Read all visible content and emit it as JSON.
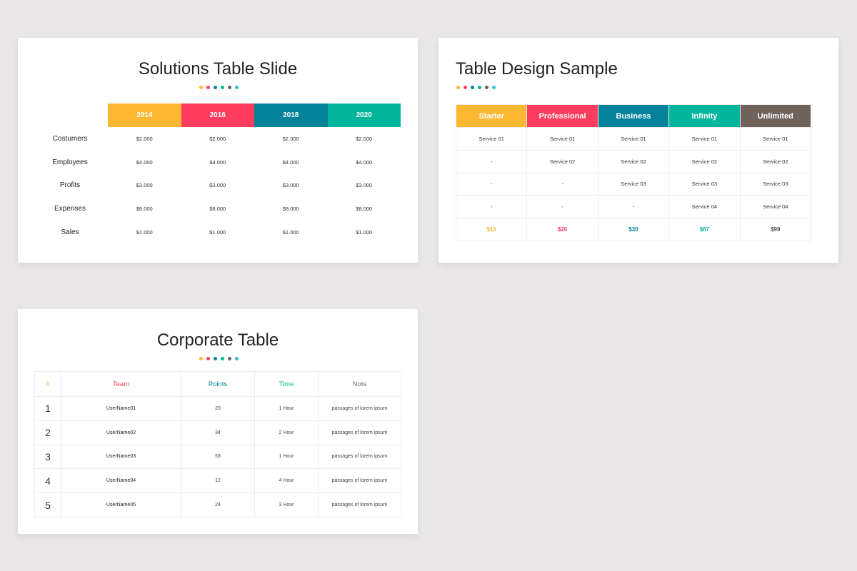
{
  "colors": {
    "yellow": "#fdb833",
    "red": "#fe3d5e",
    "teal": "#03829a",
    "green": "#03b69b",
    "brown": "#6f625b",
    "cyan": "#31bfdd"
  },
  "slide1": {
    "title": "Solutions Table Slide",
    "headers": [
      "2014",
      "2016",
      "2018",
      "2020"
    ],
    "rows": [
      {
        "label": "Costumers",
        "values": [
          "$2.000",
          "$2.000",
          "$2.000",
          "$2.000"
        ]
      },
      {
        "label": "Employees",
        "values": [
          "$4.000",
          "$4.000",
          "$4.000",
          "$4.000"
        ]
      },
      {
        "label": "Profits",
        "values": [
          "$3.000",
          "$3.000",
          "$3.000",
          "$3.000"
        ]
      },
      {
        "label": "Expenses",
        "values": [
          "$8.000",
          "$8.000",
          "$8.000",
          "$8.000"
        ]
      },
      {
        "label": "Sales",
        "values": [
          "$1.000",
          "$1.000",
          "$1.000",
          "$1.000"
        ]
      }
    ]
  },
  "slide2": {
    "title": "Table Design Sample",
    "headers": [
      "Starter",
      "Professional",
      "Business",
      "Infinity",
      "Unlimited"
    ],
    "rows": [
      [
        "Service 01",
        "Service 01",
        "Service 01",
        "Service 01",
        "Service 01"
      ],
      [
        "-",
        "Service 02",
        "Service 02",
        "Service 02",
        "Service 02"
      ],
      [
        "-",
        "-",
        "Service 03",
        "Service 03",
        "Service 03"
      ],
      [
        "-",
        "-",
        "-",
        "Service 04",
        "Service 04"
      ]
    ],
    "prices": [
      "$13",
      "$20",
      "$30",
      "$67",
      "$99"
    ]
  },
  "slide3": {
    "title": "Corporate Table",
    "headers": [
      "#",
      "Team",
      "Points",
      "Time",
      "Nots"
    ],
    "rows": [
      [
        "1",
        "UserName01",
        "20",
        "1 Hour",
        "passages of lorem ipsum"
      ],
      [
        "2",
        "UserName02",
        "34",
        "2 Hour",
        "passages of lorem ipsum"
      ],
      [
        "3",
        "UserName03",
        "53",
        "1 Hour",
        "passages of lorem ipsum"
      ],
      [
        "4",
        "UserName04",
        "12",
        "4 Hour",
        "passages of lorem ipsum"
      ],
      [
        "5",
        "UserName05",
        "24",
        "3 Hour",
        "passages of lorem ipsum"
      ]
    ]
  }
}
